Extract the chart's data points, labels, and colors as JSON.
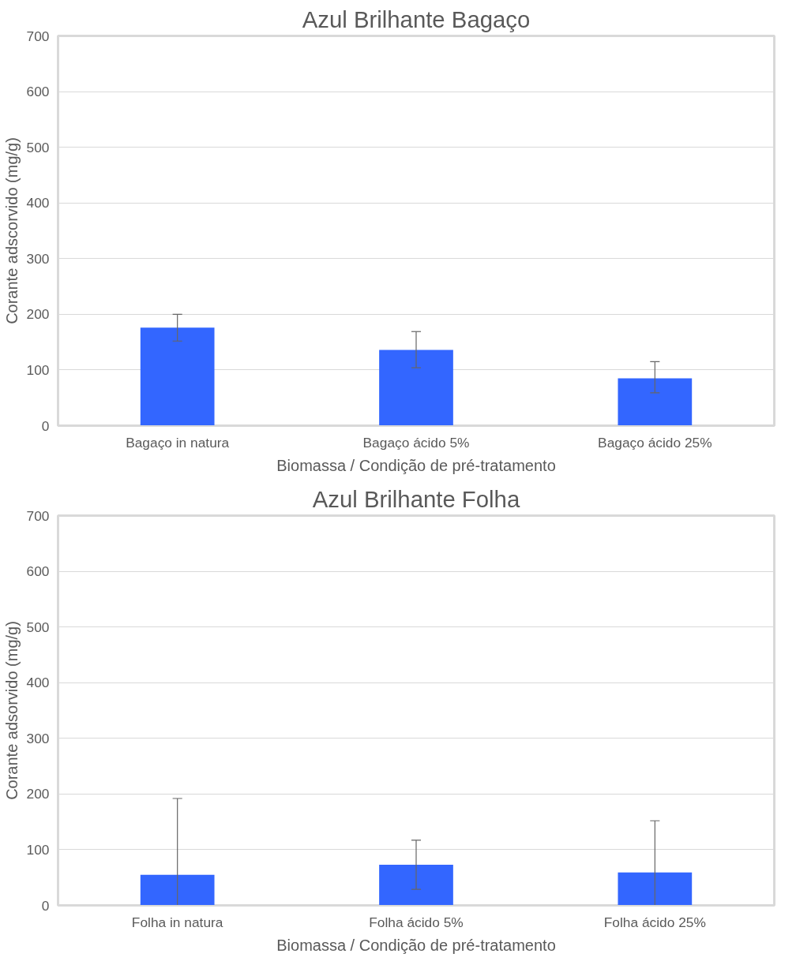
{
  "chart_data": [
    {
      "type": "bar",
      "title": "Azul Brilhante Bagaço",
      "xlabel": "Biomassa / Condição de pré-tratamento",
      "ylabel": "Corante adscorvido (mg/g)",
      "categories": [
        "Bagaço in natura",
        "Bagaço ácido 5%",
        "Bagaço ácido 25%"
      ],
      "values": [
        176,
        136,
        85
      ],
      "errors": [
        [
          152,
          200
        ],
        [
          104,
          169
        ],
        [
          59,
          115
        ]
      ],
      "color": "#3366ff",
      "ylim": [
        0,
        700
      ],
      "yticks": [
        0,
        100,
        200,
        300,
        400,
        500,
        600,
        700
      ],
      "grid": "y"
    },
    {
      "type": "bar",
      "title": "Azul Brilhante Folha",
      "xlabel": "Biomassa / Condição de pré-tratamento",
      "ylabel": "Corante adsorvido (mg/g)",
      "categories": [
        "Folha in natura",
        "Folha ácido 5%",
        "Folha ácido 25%"
      ],
      "values": [
        55,
        73,
        59
      ],
      "errors": [
        [
          0,
          192
        ],
        [
          29,
          117
        ],
        [
          0,
          152
        ]
      ],
      "color": "#3366ff",
      "ylim": [
        0,
        700
      ],
      "yticks": [
        0,
        100,
        200,
        300,
        400,
        500,
        600,
        700
      ],
      "grid": "y"
    }
  ]
}
